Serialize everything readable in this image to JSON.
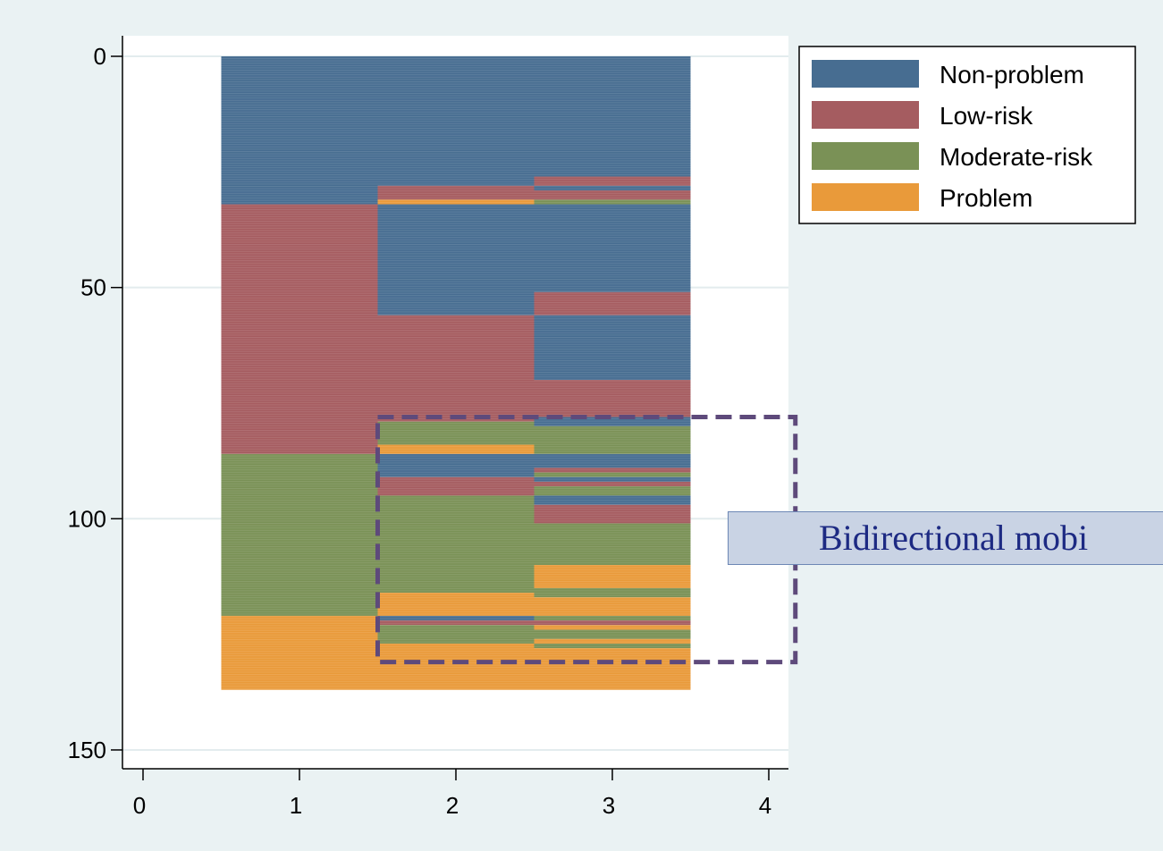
{
  "chart_data": {
    "type": "sequence-index-plot",
    "title": "",
    "xlabel": "",
    "ylabel": "",
    "xlim": [
      0,
      4
    ],
    "ylim": [
      150,
      0
    ],
    "x_ticks": [
      "0",
      "1",
      "2",
      "3",
      "4"
    ],
    "y_ticks": [
      "0",
      "50",
      "100",
      "150"
    ],
    "grid": true,
    "legend_position": "top-right",
    "states": [
      {
        "name": "Non-problem",
        "color": "#476d91"
      },
      {
        "name": "Low-risk",
        "color": "#a55c60"
      },
      {
        "name": "Moderate-risk",
        "color": "#7a9156"
      },
      {
        "name": "Problem",
        "color": "#e99a3a"
      }
    ],
    "segments": [
      {
        "x": 1,
        "from": 0,
        "to": 32,
        "state": "Non-problem"
      },
      {
        "x": 1,
        "from": 32,
        "to": 86,
        "state": "Low-risk"
      },
      {
        "x": 1,
        "from": 86,
        "to": 121,
        "state": "Moderate-risk"
      },
      {
        "x": 1,
        "from": 121,
        "to": 137,
        "state": "Problem"
      },
      {
        "x": 2,
        "from": 0,
        "to": 28,
        "state": "Non-problem"
      },
      {
        "x": 2,
        "from": 28,
        "to": 31,
        "state": "Low-risk"
      },
      {
        "x": 2,
        "from": 31,
        "to": 32,
        "state": "Problem"
      },
      {
        "x": 2,
        "from": 32,
        "to": 56,
        "state": "Non-problem"
      },
      {
        "x": 2,
        "from": 56,
        "to": 79,
        "state": "Low-risk"
      },
      {
        "x": 2,
        "from": 79,
        "to": 84,
        "state": "Moderate-risk"
      },
      {
        "x": 2,
        "from": 84,
        "to": 86,
        "state": "Problem"
      },
      {
        "x": 2,
        "from": 86,
        "to": 91,
        "state": "Non-problem"
      },
      {
        "x": 2,
        "from": 91,
        "to": 95,
        "state": "Low-risk"
      },
      {
        "x": 2,
        "from": 95,
        "to": 116,
        "state": "Moderate-risk"
      },
      {
        "x": 2,
        "from": 116,
        "to": 121,
        "state": "Problem"
      },
      {
        "x": 2,
        "from": 121,
        "to": 122,
        "state": "Non-problem"
      },
      {
        "x": 2,
        "from": 122,
        "to": 123,
        "state": "Low-risk"
      },
      {
        "x": 2,
        "from": 123,
        "to": 127,
        "state": "Moderate-risk"
      },
      {
        "x": 2,
        "from": 127,
        "to": 137,
        "state": "Problem"
      },
      {
        "x": 3,
        "from": 0,
        "to": 26,
        "state": "Non-problem"
      },
      {
        "x": 3,
        "from": 26,
        "to": 28,
        "state": "Low-risk"
      },
      {
        "x": 3,
        "from": 28,
        "to": 29,
        "state": "Non-problem"
      },
      {
        "x": 3,
        "from": 29,
        "to": 31,
        "state": "Low-risk"
      },
      {
        "x": 3,
        "from": 31,
        "to": 32,
        "state": "Moderate-risk"
      },
      {
        "x": 3,
        "from": 32,
        "to": 51,
        "state": "Non-problem"
      },
      {
        "x": 3,
        "from": 51,
        "to": 56,
        "state": "Low-risk"
      },
      {
        "x": 3,
        "from": 56,
        "to": 70,
        "state": "Non-problem"
      },
      {
        "x": 3,
        "from": 70,
        "to": 78,
        "state": "Low-risk"
      },
      {
        "x": 3,
        "from": 78,
        "to": 80,
        "state": "Non-problem"
      },
      {
        "x": 3,
        "from": 80,
        "to": 86,
        "state": "Moderate-risk"
      },
      {
        "x": 3,
        "from": 86,
        "to": 89,
        "state": "Non-problem"
      },
      {
        "x": 3,
        "from": 89,
        "to": 90,
        "state": "Low-risk"
      },
      {
        "x": 3,
        "from": 90,
        "to": 91,
        "state": "Moderate-risk"
      },
      {
        "x": 3,
        "from": 91,
        "to": 92,
        "state": "Non-problem"
      },
      {
        "x": 3,
        "from": 92,
        "to": 93,
        "state": "Low-risk"
      },
      {
        "x": 3,
        "from": 93,
        "to": 95,
        "state": "Moderate-risk"
      },
      {
        "x": 3,
        "from": 95,
        "to": 97,
        "state": "Non-problem"
      },
      {
        "x": 3,
        "from": 97,
        "to": 101,
        "state": "Low-risk"
      },
      {
        "x": 3,
        "from": 101,
        "to": 110,
        "state": "Moderate-risk"
      },
      {
        "x": 3,
        "from": 110,
        "to": 115,
        "state": "Problem"
      },
      {
        "x": 3,
        "from": 115,
        "to": 117,
        "state": "Moderate-risk"
      },
      {
        "x": 3,
        "from": 117,
        "to": 121,
        "state": "Problem"
      },
      {
        "x": 3,
        "from": 121,
        "to": 122,
        "state": "Moderate-risk"
      },
      {
        "x": 3,
        "from": 122,
        "to": 123,
        "state": "Low-risk"
      },
      {
        "x": 3,
        "from": 123,
        "to": 124,
        "state": "Problem"
      },
      {
        "x": 3,
        "from": 124,
        "to": 126,
        "state": "Moderate-risk"
      },
      {
        "x": 3,
        "from": 126,
        "to": 127,
        "state": "Problem"
      },
      {
        "x": 3,
        "from": 127,
        "to": 128,
        "state": "Moderate-risk"
      },
      {
        "x": 3,
        "from": 128,
        "to": 137,
        "state": "Problem"
      }
    ],
    "highlight_box": {
      "x_from": 1.5,
      "x_to": 4.17,
      "y_from": 78,
      "y_to": 131,
      "color": "#5e4a7b"
    }
  },
  "annotation": {
    "text": "Bidirectional mobi"
  }
}
